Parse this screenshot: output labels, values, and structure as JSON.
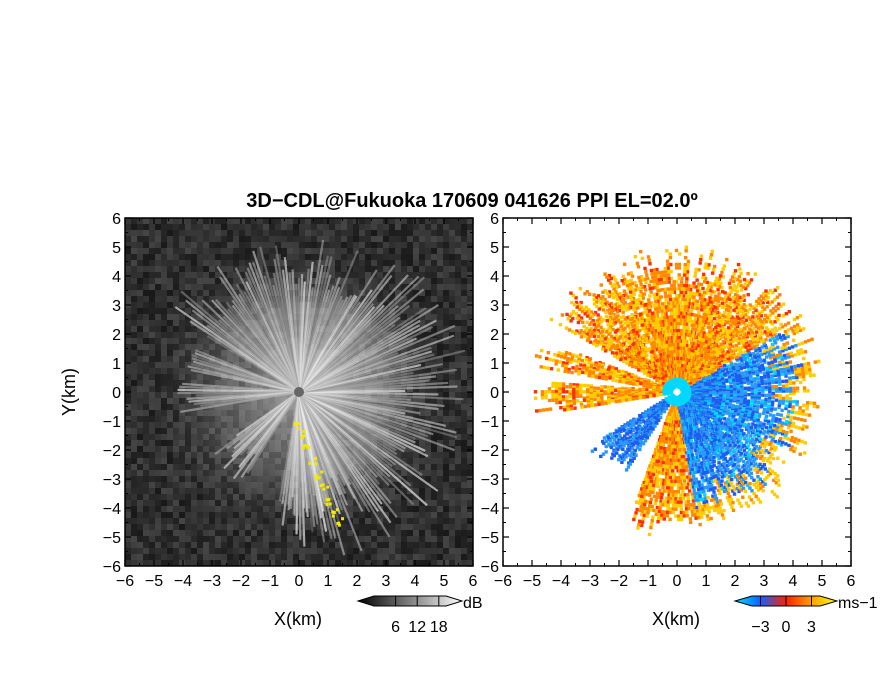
{
  "chart_data": {
    "type": "heatmap",
    "title": "3D−CDL@Fukuoka 170609 041626 PPI EL=02.0º",
    "panels": [
      {
        "name": "backscatter",
        "xlabel": "X(km)",
        "ylabel": "Y(km)",
        "xlim": [
          -6,
          6
        ],
        "ylim": [
          -6,
          6
        ],
        "x_ticks": [
          "−6",
          "−5",
          "−4",
          "−3",
          "−2",
          "−1",
          "0",
          "1",
          "2",
          "3",
          "4",
          "5",
          "6"
        ],
        "y_ticks": [
          "6",
          "5",
          "4",
          "3",
          "2",
          "1",
          "0",
          "−1",
          "−2",
          "−3",
          "−4",
          "−5",
          "−6"
        ],
        "colorbar": {
          "unit": "dB",
          "ticks": [
            "6",
            "12",
            "18"
          ],
          "tick_values": [
            6,
            12,
            18
          ],
          "range": [
            0,
            20
          ],
          "colors": [
            "#000000",
            "#ffffff"
          ]
        },
        "background_color": "#2a2a2a",
        "highlight_color": "#f4ea00"
      },
      {
        "name": "radial-velocity",
        "xlabel": "X(km)",
        "xlim": [
          -6,
          6
        ],
        "ylim": [
          -6,
          6
        ],
        "x_ticks": [
          "−6",
          "−5",
          "−4",
          "−3",
          "−2",
          "−1",
          "0",
          "1",
          "2",
          "3",
          "4",
          "5",
          "6"
        ],
        "y_ticks": [
          "6",
          "5",
          "4",
          "3",
          "2",
          "1",
          "0",
          "−1",
          "−2",
          "−3",
          "−4",
          "−5",
          "−6"
        ],
        "colorbar": {
          "unit": "ms−1",
          "ticks": [
            "−3",
            "0",
            "3"
          ],
          "tick_values": [
            -3,
            0,
            3
          ],
          "range": [
            -4,
            4
          ],
          "colors": [
            "#00e0ff",
            "#1060ff",
            "#ff2000",
            "#ffa000",
            "#ffff00"
          ]
        },
        "background_color": "#ffffff",
        "positive_color": "#ff7000",
        "negative_color": "#1c6cf0"
      }
    ]
  }
}
